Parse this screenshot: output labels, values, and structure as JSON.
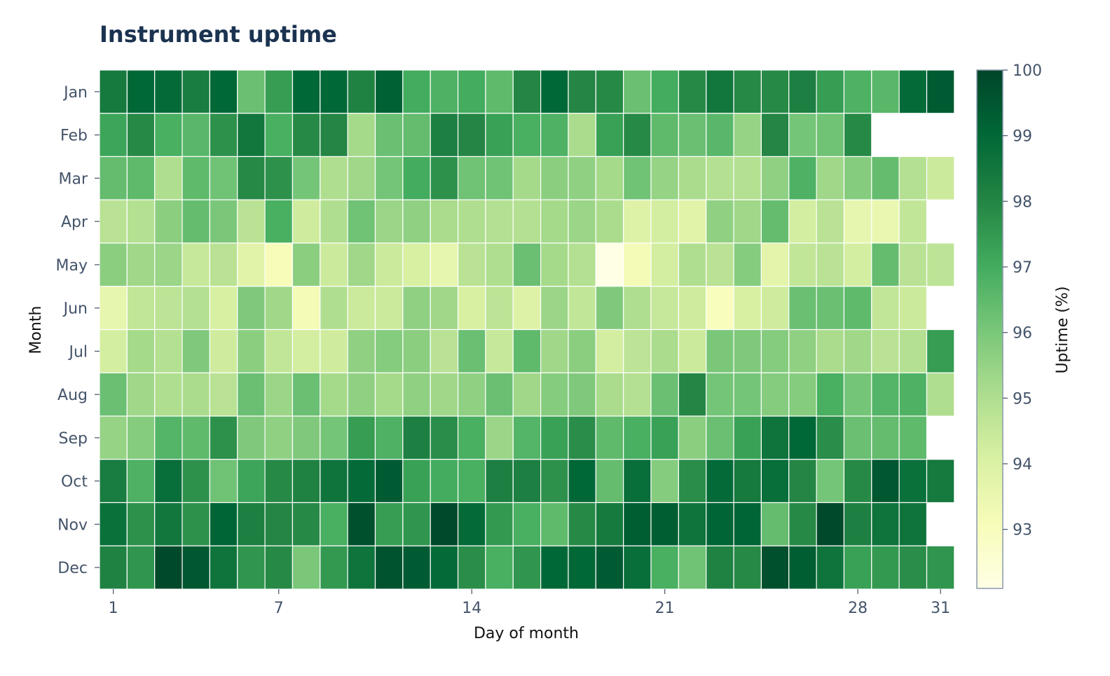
{
  "chart_data": {
    "type": "heatmap",
    "title": "Instrument uptime",
    "xlabel": "Day of month",
    "ylabel": "Month",
    "colorbar_label": "Uptime (%)",
    "colorbar_ticks": [
      93,
      94,
      95,
      96,
      97,
      98,
      99,
      100
    ],
    "color_range": [
      92.1,
      100
    ],
    "colormap": "YlGn",
    "x_ticks": [
      1,
      7,
      14,
      21,
      28,
      31
    ],
    "months": [
      "Jan",
      "Feb",
      "Mar",
      "Apr",
      "May",
      "Jun",
      "Jul",
      "Aug",
      "Sep",
      "Oct",
      "Nov",
      "Dec"
    ],
    "values": [
      [
        98.4,
        99.0,
        98.9,
        98.3,
        99.0,
        96.3,
        97.4,
        99.0,
        99.0,
        98.1,
        99.2,
        97.0,
        96.8,
        97.0,
        96.5,
        98.0,
        99.0,
        98.0,
        97.9,
        96.3,
        97.0,
        97.9,
        98.5,
        97.9,
        97.9,
        98.2,
        97.4,
        96.8,
        96.6,
        98.9,
        99.4
      ],
      [
        97.2,
        97.9,
        96.9,
        96.6,
        97.7,
        98.5,
        96.9,
        97.9,
        98.0,
        95.2,
        96.3,
        96.4,
        98.2,
        98.0,
        97.3,
        96.9,
        96.8,
        95.1,
        97.3,
        97.9,
        96.5,
        96.3,
        96.6,
        95.5,
        98.0,
        96.1,
        96.2,
        97.9,
        null,
        null,
        null
      ],
      [
        96.4,
        96.5,
        95.0,
        96.5,
        96.2,
        97.9,
        97.7,
        96.1,
        95.0,
        95.3,
        96.1,
        97.0,
        97.7,
        96.2,
        96.2,
        95.2,
        95.7,
        95.6,
        95.2,
        96.2,
        95.5,
        95.1,
        94.9,
        94.9,
        95.6,
        96.8,
        95.3,
        95.8,
        96.4,
        94.9,
        94.4
      ],
      [
        94.8,
        94.9,
        95.7,
        96.4,
        96.0,
        94.8,
        96.9,
        94.3,
        95.0,
        96.2,
        95.4,
        95.6,
        95.1,
        95.0,
        94.9,
        94.9,
        95.2,
        95.4,
        95.1,
        93.9,
        94.2,
        93.8,
        95.6,
        95.3,
        96.4,
        94.2,
        94.8,
        93.6,
        93.5,
        94.6,
        null
      ],
      [
        95.7,
        95.3,
        95.4,
        94.5,
        94.8,
        93.8,
        93.1,
        95.7,
        94.4,
        95.3,
        94.4,
        94.1,
        93.6,
        94.8,
        95.0,
        96.3,
        95.2,
        94.9,
        92.1,
        93.2,
        94.2,
        95.0,
        94.8,
        95.8,
        93.7,
        94.6,
        94.8,
        94.2,
        96.4,
        94.8,
        94.7
      ],
      [
        93.6,
        94.6,
        94.7,
        94.9,
        94.1,
        95.9,
        95.3,
        93.2,
        95.0,
        94.4,
        94.4,
        95.6,
        95.3,
        94.1,
        94.7,
        93.9,
        95.4,
        94.6,
        95.9,
        95.0,
        94.5,
        94.3,
        93.0,
        94.1,
        94.3,
        96.3,
        96.3,
        96.5,
        94.6,
        94.4,
        null
      ],
      [
        94.2,
        95.2,
        94.9,
        95.9,
        94.3,
        95.7,
        94.6,
        94.2,
        94.3,
        95.6,
        95.8,
        95.7,
        94.8,
        96.3,
        94.5,
        96.5,
        95.3,
        95.7,
        94.2,
        94.7,
        95.1,
        94.4,
        96.0,
        95.9,
        95.8,
        95.6,
        95.1,
        95.3,
        94.8,
        94.9,
        97.4
      ],
      [
        96.3,
        95.3,
        95.0,
        95.1,
        94.8,
        96.3,
        95.4,
        96.3,
        95.2,
        95.6,
        95.2,
        95.6,
        95.3,
        95.6,
        96.3,
        95.3,
        95.8,
        95.9,
        95.1,
        94.9,
        96.3,
        98.0,
        96.1,
        96.1,
        95.8,
        95.8,
        96.9,
        96.1,
        96.7,
        96.8,
        95.0
      ],
      [
        95.5,
        95.8,
        96.7,
        96.5,
        97.7,
        95.9,
        95.6,
        95.9,
        96.1,
        97.4,
        96.8,
        98.2,
        97.8,
        96.9,
        95.4,
        96.7,
        97.3,
        97.8,
        96.5,
        96.9,
        97.3,
        95.7,
        96.3,
        97.3,
        98.6,
        99.0,
        97.8,
        96.3,
        96.4,
        96.5,
        null
      ],
      [
        98.3,
        96.8,
        98.8,
        97.7,
        96.2,
        97.2,
        97.9,
        98.1,
        98.6,
        98.9,
        99.4,
        97.3,
        97.0,
        96.9,
        98.2,
        98.2,
        97.7,
        99.0,
        96.4,
        98.8,
        95.8,
        97.8,
        98.9,
        98.4,
        98.8,
        98.0,
        96.1,
        97.9,
        99.5,
        98.7,
        98.4
      ],
      [
        98.7,
        97.7,
        98.5,
        97.7,
        99.1,
        98.2,
        98.0,
        97.9,
        96.9,
        99.7,
        97.4,
        97.6,
        99.9,
        98.9,
        97.5,
        96.9,
        96.5,
        97.9,
        98.4,
        99.3,
        99.3,
        98.6,
        99.1,
        99.1,
        96.4,
        97.9,
        99.9,
        98.2,
        98.6,
        98.6,
        null
      ],
      [
        98.1,
        97.6,
        99.9,
        99.5,
        98.6,
        97.6,
        97.9,
        96.0,
        97.5,
        98.6,
        99.6,
        99.4,
        98.9,
        97.8,
        96.9,
        97.6,
        99.0,
        99.0,
        99.4,
        98.8,
        96.9,
        96.2,
        98.1,
        97.9,
        99.7,
        99.3,
        98.6,
        97.3,
        97.5,
        97.8,
        97.6
      ]
    ]
  }
}
